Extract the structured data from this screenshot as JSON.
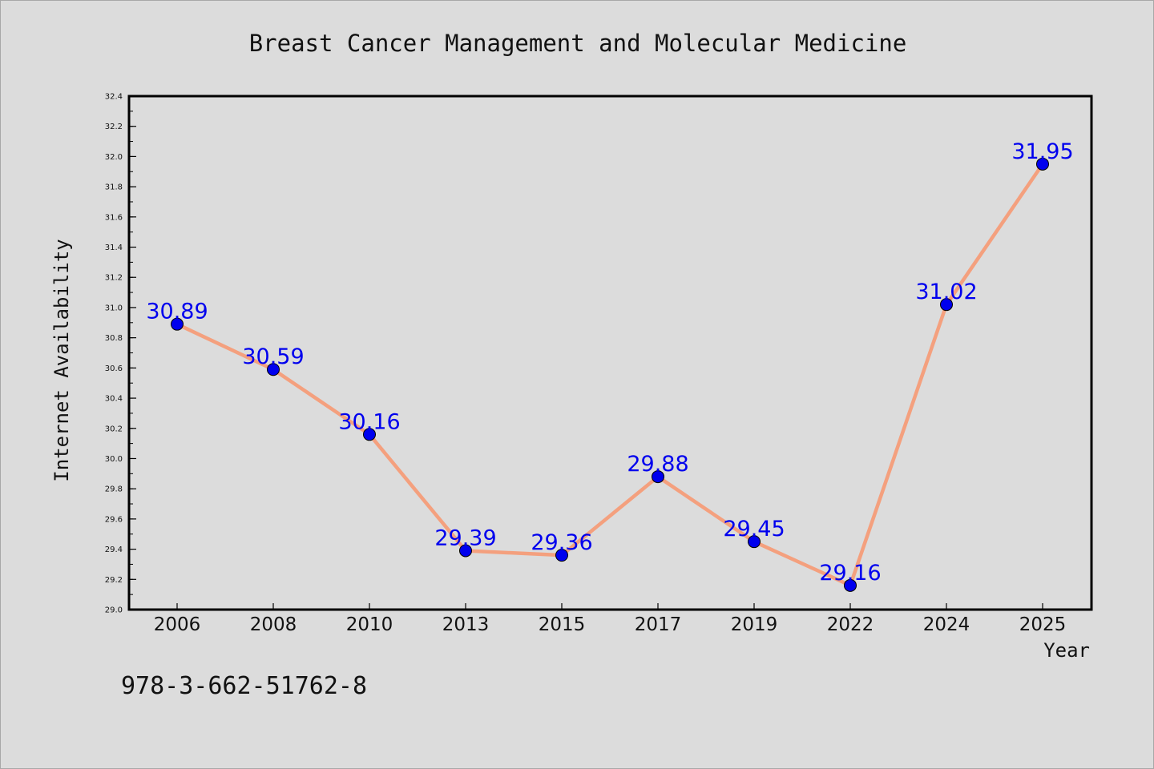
{
  "chart_data": {
    "type": "line",
    "title": "Breast Cancer Management and Molecular Medicine",
    "xlabel": "Year",
    "ylabel": "Internet Availability",
    "categories": [
      "2006",
      "2008",
      "2010",
      "2013",
      "2015",
      "2017",
      "2019",
      "2022",
      "2024",
      "2025"
    ],
    "series": [
      {
        "values": [
          30.89,
          30.59,
          30.16,
          29.39,
          29.36,
          29.88,
          29.45,
          29.16,
          31.02,
          31.95
        ],
        "labels": [
          "30.89",
          "30.59",
          "30.16",
          "29.39",
          "29.36",
          "29.88",
          "29.45",
          "29.16",
          "31.02",
          "31.95"
        ],
        "line_color": "#f4a07e",
        "marker_color": "#0000ee",
        "label_color": "#0000ee"
      }
    ],
    "ylim": [
      29.0,
      32.4
    ],
    "y_ticks": [
      "29.0",
      "29.2",
      "29.4",
      "29.6",
      "29.8",
      "30.0",
      "30.2",
      "30.4",
      "30.6",
      "30.8",
      "31.0",
      "31.2",
      "31.4",
      "31.6",
      "31.8",
      "32.0",
      "32.2",
      "32.4"
    ],
    "y_minor_step": 0.1,
    "grid": false,
    "legend": "none",
    "annotation": "978-3-662-51762-8"
  },
  "colors": {
    "background": "#dcdcdc",
    "axes_frame": "#000000",
    "text": "#111111"
  }
}
